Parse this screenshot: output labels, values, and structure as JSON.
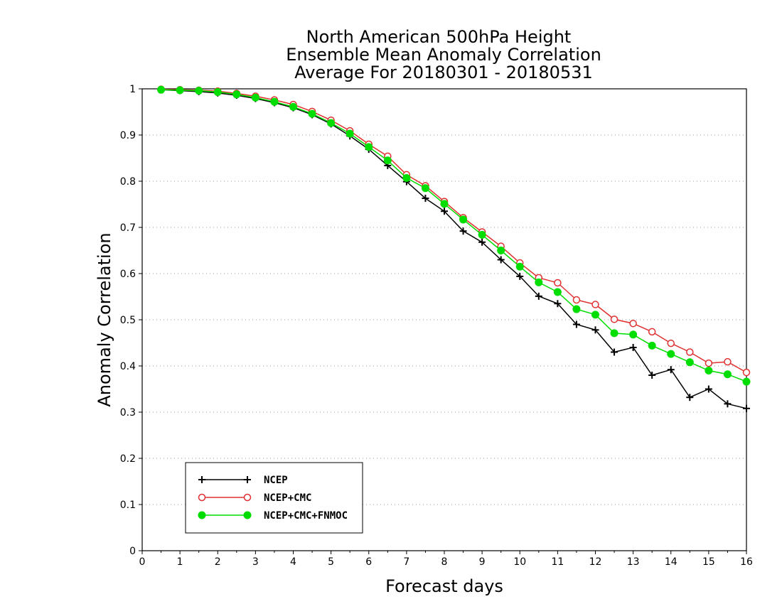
{
  "chart_data": {
    "type": "line",
    "title": [
      "North American 500hPa Height",
      "Ensemble Mean Anomaly Correlation",
      "Average For 20180301 - 20180531"
    ],
    "xlabel": "Forecast days",
    "ylabel": "Anomaly Correlation",
    "xlim": [
      0,
      16
    ],
    "ylim": [
      0,
      1
    ],
    "x_ticks": [
      "0",
      "1",
      "2",
      "3",
      "4",
      "5",
      "6",
      "7",
      "8",
      "9",
      "10",
      "11",
      "12",
      "13",
      "14",
      "15",
      "16"
    ],
    "y_ticks": [
      "0",
      "0.1",
      "0.2",
      "0.3",
      "0.4",
      "0.5",
      "0.6",
      "0.7",
      "0.8",
      "0.9",
      "1"
    ],
    "grid": "horizontal-dotted",
    "legend_position": "bottom-left",
    "x": [
      0.5,
      1,
      1.5,
      2,
      2.5,
      3,
      3.5,
      4,
      4.5,
      5,
      5.5,
      6,
      6.5,
      7,
      7.5,
      8,
      8.5,
      9,
      9.5,
      10,
      10.5,
      11,
      11.5,
      12,
      12.5,
      13,
      13.5,
      14,
      14.5,
      15,
      15.5,
      16
    ],
    "series": [
      {
        "name": "NCEP",
        "color": "#000000",
        "marker": "plus",
        "values": [
          0.998,
          0.996,
          0.994,
          0.991,
          0.986,
          0.979,
          0.97,
          0.959,
          0.944,
          0.924,
          0.898,
          0.869,
          0.834,
          0.799,
          0.763,
          0.735,
          0.692,
          0.668,
          0.63,
          0.594,
          0.551,
          0.535,
          0.49,
          0.478,
          0.43,
          0.44,
          0.38,
          0.392,
          0.332,
          0.35,
          0.318,
          0.308
        ]
      },
      {
        "name": "NCEP+CMC",
        "color": "#e03030",
        "marker": "open-circle",
        "values": [
          0.999,
          0.998,
          0.997,
          0.995,
          0.99,
          0.984,
          0.976,
          0.966,
          0.951,
          0.932,
          0.909,
          0.88,
          0.854,
          0.814,
          0.79,
          0.756,
          0.721,
          0.69,
          0.659,
          0.623,
          0.591,
          0.58,
          0.543,
          0.533,
          0.501,
          0.492,
          0.474,
          0.449,
          0.43,
          0.406,
          0.409,
          0.386
        ]
      },
      {
        "name": "NCEP+CMC+FNMOC",
        "color": "#00dd00",
        "marker": "filled-circle",
        "values": [
          0.998,
          0.997,
          0.996,
          0.993,
          0.988,
          0.981,
          0.972,
          0.961,
          0.946,
          0.926,
          0.903,
          0.874,
          0.845,
          0.807,
          0.785,
          0.751,
          0.717,
          0.684,
          0.65,
          0.615,
          0.581,
          0.56,
          0.523,
          0.511,
          0.471,
          0.468,
          0.444,
          0.426,
          0.408,
          0.39,
          0.382,
          0.366
        ]
      }
    ]
  }
}
